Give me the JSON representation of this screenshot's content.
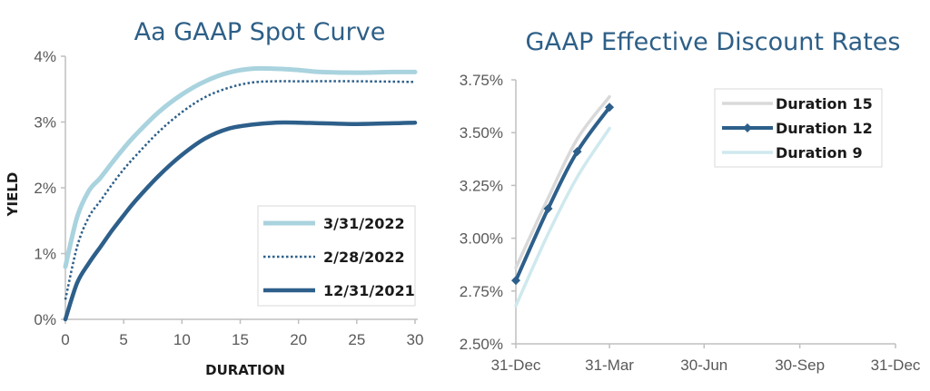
{
  "chart_data": [
    {
      "type": "line",
      "title": "Aa GAAP Spot Curve",
      "xlabel": "DURATION",
      "ylabel": "YIELD",
      "xlim": [
        0,
        30
      ],
      "ylim": [
        0,
        4
      ],
      "x_ticks": [
        "0",
        "5",
        "10",
        "15",
        "20",
        "25",
        "30"
      ],
      "y_ticks": [
        "0%",
        "1%",
        "2%",
        "3%",
        "4%"
      ],
      "grid": false,
      "legend_position": "bottom-right",
      "series": [
        {
          "name": "3/31/2022",
          "color": "#a9d3de",
          "style": "solid",
          "x": [
            0,
            1,
            2,
            3,
            4,
            5,
            6,
            8,
            10,
            12,
            14,
            16,
            18,
            20,
            22,
            25,
            28,
            30
          ],
          "y": [
            0.8,
            1.55,
            1.95,
            2.15,
            2.38,
            2.6,
            2.8,
            3.15,
            3.42,
            3.62,
            3.75,
            3.81,
            3.81,
            3.79,
            3.76,
            3.75,
            3.76,
            3.76
          ]
        },
        {
          "name": "2/28/2022",
          "color": "#2d5f8a",
          "style": "dotted",
          "x": [
            0,
            1,
            2,
            3,
            4,
            5,
            6,
            8,
            10,
            12,
            14,
            16,
            18,
            20,
            25,
            30
          ],
          "y": [
            0.3,
            1.1,
            1.55,
            1.8,
            2.05,
            2.28,
            2.48,
            2.85,
            3.15,
            3.38,
            3.52,
            3.6,
            3.62,
            3.62,
            3.62,
            3.61
          ]
        },
        {
          "name": "12/31/2021",
          "color": "#2d5f8a",
          "style": "solid",
          "x": [
            0,
            1,
            2,
            3,
            4,
            5,
            6,
            8,
            10,
            12,
            14,
            16,
            18,
            20,
            22,
            25,
            28,
            30
          ],
          "y": [
            0.0,
            0.55,
            0.85,
            1.1,
            1.35,
            1.58,
            1.8,
            2.18,
            2.5,
            2.75,
            2.9,
            2.96,
            2.99,
            2.99,
            2.98,
            2.97,
            2.98,
            2.99
          ]
        }
      ]
    },
    {
      "type": "line",
      "title": "GAAP Effective Discount Rates",
      "xlabel": "",
      "ylabel": "",
      "x_tick_labels": [
        "31-Dec",
        "31-Mar",
        "30-Jun",
        "30-Sep",
        "31-Dec"
      ],
      "x_tick_dates": [
        "2021-12-31",
        "2022-03-31",
        "2022-06-30",
        "2022-09-30",
        "2022-12-31"
      ],
      "ylim": [
        2.5,
        3.75
      ],
      "y_ticks": [
        "2.50%",
        "2.75%",
        "3.00%",
        "3.25%",
        "3.50%",
        "3.75%"
      ],
      "grid": false,
      "legend_position": "top-right",
      "series": [
        {
          "name": "Duration 15",
          "color": "#d9d9d9",
          "markers": false,
          "x": [
            "2021-12-31",
            "2022-01-31",
            "2022-02-28",
            "2022-03-31"
          ],
          "y": [
            2.86,
            3.19,
            3.47,
            3.67
          ]
        },
        {
          "name": "Duration 12",
          "color": "#2d5f8a",
          "markers": true,
          "x": [
            "2021-12-31",
            "2022-01-31",
            "2022-02-28",
            "2022-03-31"
          ],
          "y": [
            2.8,
            3.14,
            3.41,
            3.62
          ]
        },
        {
          "name": "Duration 9",
          "color": "#cfe9ee",
          "markers": false,
          "x": [
            "2021-12-31",
            "2022-01-31",
            "2022-02-28",
            "2022-03-31"
          ],
          "y": [
            2.68,
            3.02,
            3.29,
            3.52
          ]
        }
      ]
    }
  ]
}
